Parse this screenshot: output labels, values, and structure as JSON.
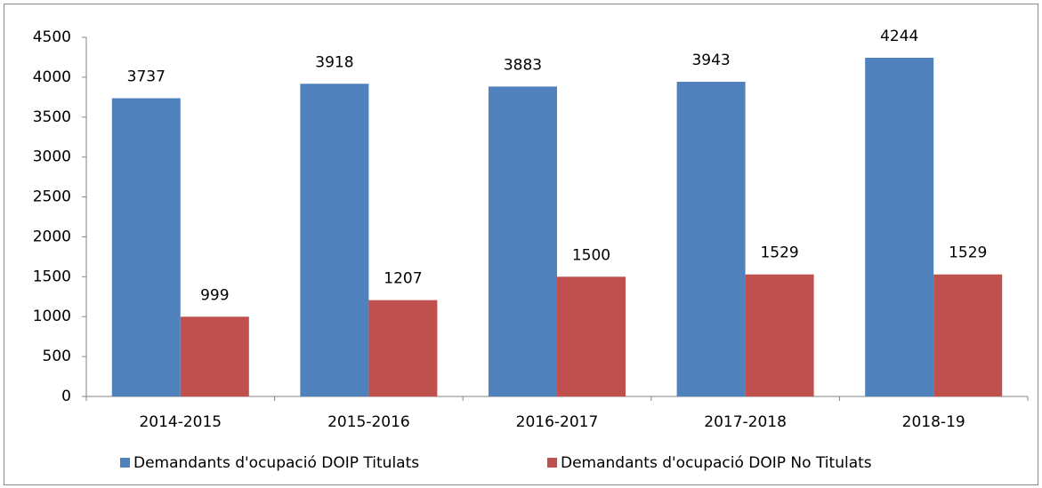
{
  "chart_data": {
    "type": "bar",
    "categories": [
      "2014-2015",
      "2015-2016",
      "2016-2017",
      "2017-2018",
      "2018-19"
    ],
    "series": [
      {
        "name": "Demandants d'ocupació DOIP Titulats",
        "color": "#4f81bd",
        "values": [
          3737,
          3918,
          3883,
          3943,
          4244
        ]
      },
      {
        "name": "Demandants d'ocupació DOIP No Titulats",
        "color": "#c0504d",
        "values": [
          999,
          1207,
          1500,
          1529,
          1529
        ]
      }
    ],
    "ylim": [
      0,
      4500
    ],
    "yticks": [
      0,
      500,
      1000,
      1500,
      2000,
      2500,
      3000,
      3500,
      4000,
      4500
    ],
    "grid": false,
    "legend": "bottom"
  }
}
